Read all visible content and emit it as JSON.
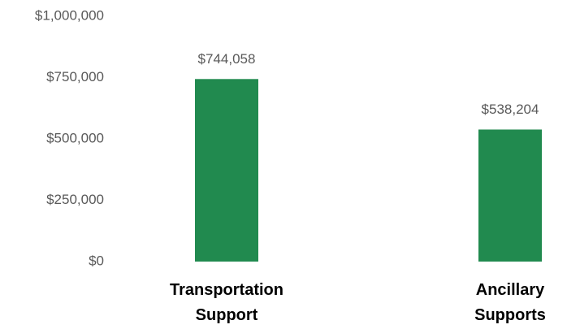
{
  "chart_data": {
    "type": "bar",
    "categories": [
      "Transportation Support",
      "Ancillary Supports"
    ],
    "values": [
      744058,
      538204
    ],
    "value_labels": [
      "$744,058",
      "$538,204"
    ],
    "color": "#218a4f",
    "ylim": [
      0,
      1000000
    ],
    "yticks": [
      {
        "value": 0,
        "label": "$0"
      },
      {
        "value": 250000,
        "label": "$250,000"
      },
      {
        "value": 500000,
        "label": "$500,000"
      },
      {
        "value": 750000,
        "label": "$750,000"
      },
      {
        "value": 1000000,
        "label": "$1,000,000"
      }
    ],
    "grid": false
  }
}
